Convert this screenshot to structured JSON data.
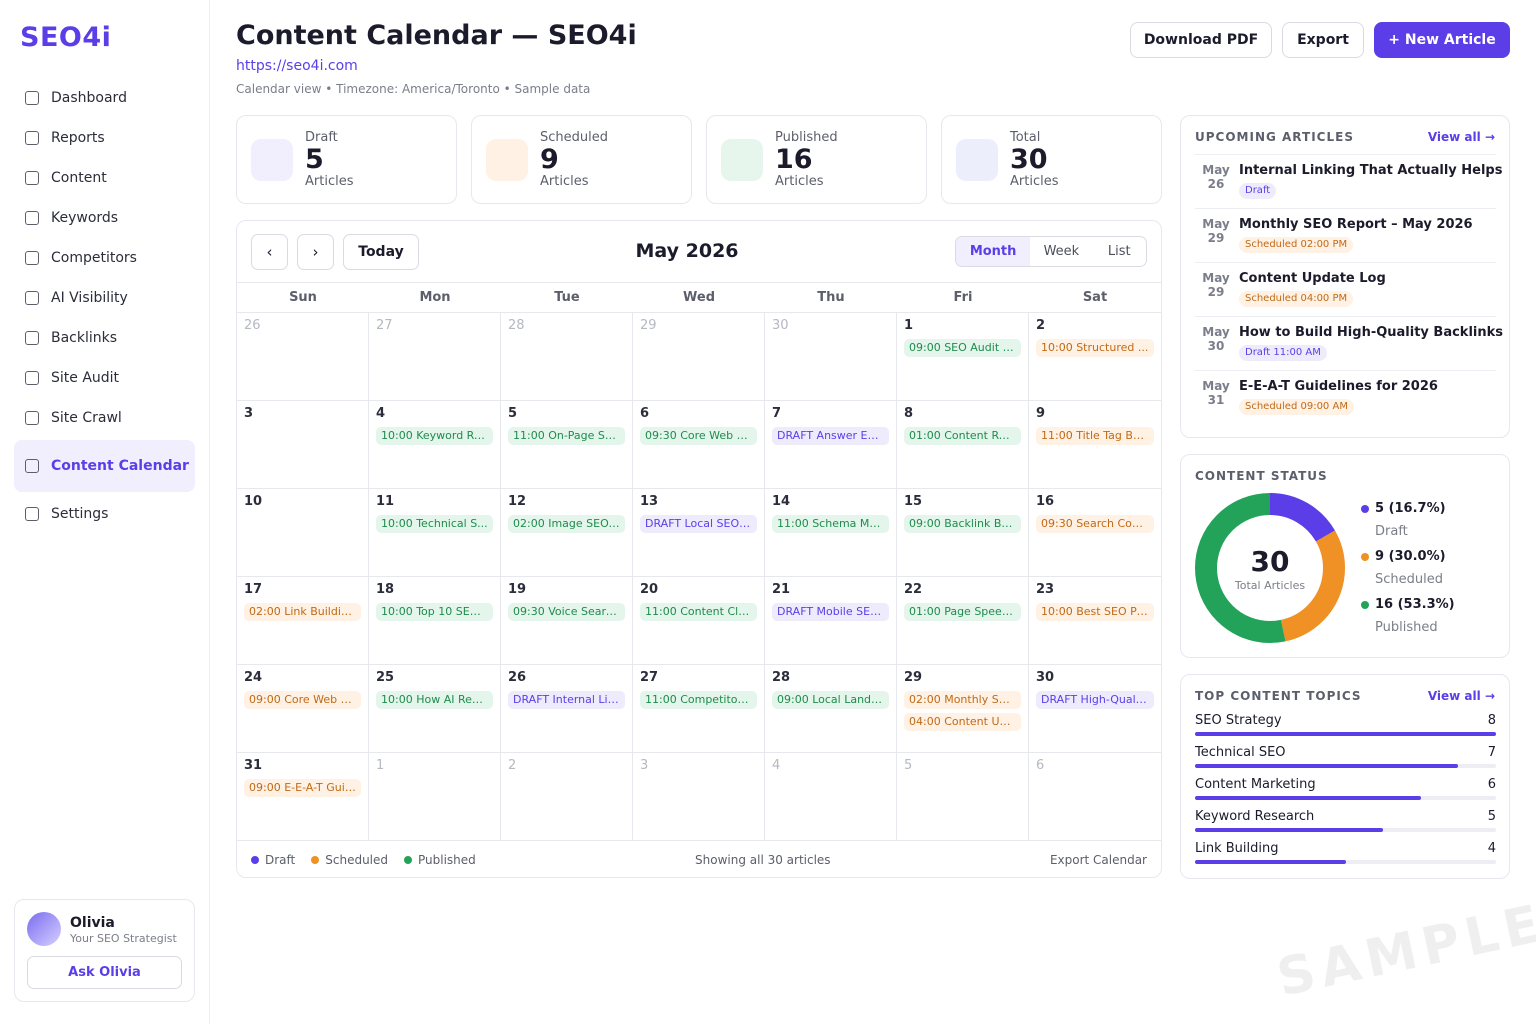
{
  "app": {
    "logo": "SEO4i"
  },
  "sidebar": {
    "items": [
      {
        "label": "Dashboard",
        "active": false
      },
      {
        "label": "Reports",
        "active": false
      },
      {
        "label": "Content",
        "active": false
      },
      {
        "label": "Keywords",
        "active": false
      },
      {
        "label": "Competitors",
        "active": false
      },
      {
        "label": "AI Visibility",
        "active": false
      },
      {
        "label": "Backlinks",
        "active": false
      },
      {
        "label": "Site Audit",
        "active": false
      },
      {
        "label": "Site Crawl",
        "active": false
      },
      {
        "label": "Content Calendar",
        "active": true
      },
      {
        "label": "Settings",
        "active": false
      }
    ],
    "user": {
      "name": "Olivia",
      "role": "Your SEO Strategist",
      "button": "Ask Olivia"
    }
  },
  "header": {
    "title": "Content Calendar — SEO4i",
    "url": "https://seo4i.com",
    "meta": "Calendar view  •  Timezone: America/Toronto  •  Sample data",
    "buttons": {
      "pdf": "Download PDF",
      "export": "Export",
      "new": "+ New Article"
    }
  },
  "stats": [
    {
      "label": "Draft",
      "value": "5",
      "sub": "Articles",
      "color": "#f1eefe"
    },
    {
      "label": "Scheduled",
      "value": "9",
      "sub": "Articles",
      "color": "#fff1e3"
    },
    {
      "label": "Published",
      "value": "16",
      "sub": "Articles",
      "color": "#e6f6ec"
    },
    {
      "label": "Total",
      "value": "30",
      "sub": "Articles",
      "color": "#eceefb"
    }
  ],
  "calendar": {
    "month": "May 2026",
    "prev": "‹",
    "next": "›",
    "today": "Today",
    "views": [
      "Month",
      "Week",
      "List"
    ],
    "weekdays": [
      "Sun",
      "Mon",
      "Tue",
      "Wed",
      "Thu",
      "Fri",
      "Sat"
    ],
    "weeks": [
      [
        {
          "d": "26",
          "other": true,
          "events": []
        },
        {
          "d": "27",
          "other": true,
          "events": []
        },
        {
          "d": "28",
          "other": true,
          "events": []
        },
        {
          "d": "29",
          "other": true,
          "events": []
        },
        {
          "d": "30",
          "other": true,
          "events": []
        },
        {
          "d": "1",
          "events": [
            {
              "t": "09:00 SEO Audit C...",
              "s": "published"
            }
          ]
        },
        {
          "d": "2",
          "events": [
            {
              "t": "10:00 Structured ...",
              "s": "scheduled"
            }
          ]
        }
      ],
      [
        {
          "d": "3",
          "events": []
        },
        {
          "d": "4",
          "events": [
            {
              "t": "10:00 Keyword Re...",
              "s": "published"
            }
          ]
        },
        {
          "d": "5",
          "events": [
            {
              "t": "11:00 On-Page SE...",
              "s": "published"
            }
          ]
        },
        {
          "d": "6",
          "events": [
            {
              "t": "09:30 Core Web Vi...",
              "s": "published"
            }
          ]
        },
        {
          "d": "7",
          "events": [
            {
              "t": "DRAFT Answer En...",
              "s": "draft"
            }
          ]
        },
        {
          "d": "8",
          "events": [
            {
              "t": "01:00 Content Ref...",
              "s": "published"
            }
          ]
        },
        {
          "d": "9",
          "events": [
            {
              "t": "11:00 Title Tag Be...",
              "s": "scheduled"
            }
          ]
        }
      ],
      [
        {
          "d": "10",
          "events": []
        },
        {
          "d": "11",
          "events": [
            {
              "t": "10:00 Technical S...",
              "s": "published"
            }
          ]
        },
        {
          "d": "12",
          "events": [
            {
              "t": "02:00 Image SEO: ...",
              "s": "published"
            }
          ]
        },
        {
          "d": "13",
          "events": [
            {
              "t": "DRAFT Local SEO ...",
              "s": "draft"
            }
          ]
        },
        {
          "d": "14",
          "events": [
            {
              "t": "11:00 Schema Ma...",
              "s": "published"
            }
          ]
        },
        {
          "d": "15",
          "events": [
            {
              "t": "09:00 Backlink Bui...",
              "s": "published"
            }
          ]
        },
        {
          "d": "16",
          "events": [
            {
              "t": "09:30 Search Con...",
              "s": "scheduled"
            }
          ]
        }
      ],
      [
        {
          "d": "17",
          "events": [
            {
              "t": "02:00 Link Buildin...",
              "s": "scheduled"
            }
          ]
        },
        {
          "d": "18",
          "events": [
            {
              "t": "10:00 Top 10 SEO ...",
              "s": "published"
            }
          ]
        },
        {
          "d": "19",
          "events": [
            {
              "t": "09:30 Voice Searc...",
              "s": "published"
            }
          ]
        },
        {
          "d": "20",
          "events": [
            {
              "t": "11:00 Content Clu...",
              "s": "published"
            }
          ]
        },
        {
          "d": "21",
          "events": [
            {
              "t": "DRAFT Mobile SEO...",
              "s": "draft"
            }
          ]
        },
        {
          "d": "22",
          "events": [
            {
              "t": "01:00 Page Speed...",
              "s": "published"
            }
          ]
        },
        {
          "d": "23",
          "events": [
            {
              "t": "10:00 Best SEO Pr...",
              "s": "scheduled"
            }
          ]
        }
      ],
      [
        {
          "d": "24",
          "events": [
            {
              "t": "09:00 Core Web Vi...",
              "s": "scheduled"
            }
          ]
        },
        {
          "d": "25",
          "events": [
            {
              "t": "10:00 How AI Rea...",
              "s": "published"
            }
          ]
        },
        {
          "d": "26",
          "events": [
            {
              "t": "DRAFT Internal Lin...",
              "s": "draft"
            }
          ]
        },
        {
          "d": "27",
          "events": [
            {
              "t": "11:00 Competitor ...",
              "s": "published"
            }
          ]
        },
        {
          "d": "28",
          "events": [
            {
              "t": "09:00 Local Landi...",
              "s": "published"
            }
          ]
        },
        {
          "d": "29",
          "events": [
            {
              "t": "02:00 Monthly SE...",
              "s": "scheduled"
            },
            {
              "t": "04:00 Content Up...",
              "s": "scheduled"
            }
          ]
        },
        {
          "d": "30",
          "events": [
            {
              "t": "DRAFT High-Qualit...",
              "s": "draft"
            }
          ]
        }
      ],
      [
        {
          "d": "31",
          "events": [
            {
              "t": "09:00 E-E-A-T Guid...",
              "s": "scheduled"
            }
          ]
        },
        {
          "d": "1",
          "other": true,
          "events": []
        },
        {
          "d": "2",
          "other": true,
          "events": []
        },
        {
          "d": "3",
          "other": true,
          "events": []
        },
        {
          "d": "4",
          "other": true,
          "events": []
        },
        {
          "d": "5",
          "other": true,
          "events": []
        },
        {
          "d": "6",
          "other": true,
          "events": []
        }
      ]
    ],
    "legend": [
      {
        "label": "Draft",
        "color": "#5b3ee8"
      },
      {
        "label": "Scheduled",
        "color": "#ef9124"
      },
      {
        "label": "Published",
        "color": "#23a35a"
      }
    ],
    "showing": "Showing all 30 articles",
    "export": "Export Calendar"
  },
  "upcoming": {
    "title": "UPCOMING ARTICLES",
    "link": "View all →",
    "items": [
      {
        "month": "May",
        "day": "26",
        "title": "Internal Linking That Actually Helps",
        "badge": "Draft",
        "status": "draft"
      },
      {
        "month": "May",
        "day": "29",
        "title": "Monthly SEO Report – May 2026",
        "badge": "Scheduled 02:00 PM",
        "status": "scheduled"
      },
      {
        "month": "May",
        "day": "29",
        "title": "Content Update Log",
        "badge": "Scheduled 04:00 PM",
        "status": "scheduled"
      },
      {
        "month": "May",
        "day": "30",
        "title": "How to Build High-Quality Backlinks",
        "badge": "Draft 11:00 AM",
        "status": "draft"
      },
      {
        "month": "May",
        "day": "31",
        "title": "E-E-A-T Guidelines for 2026",
        "badge": "Scheduled 09:00 AM",
        "status": "scheduled"
      }
    ]
  },
  "status": {
    "title": "CONTENT STATUS",
    "total": "30",
    "total_label": "Total Articles",
    "segments": [
      {
        "value": "5 (16.7%)",
        "name": "Draft",
        "count": 5,
        "color": "#5b3ee8"
      },
      {
        "value": "9 (30.0%)",
        "name": "Scheduled",
        "count": 9,
        "color": "#ef9124"
      },
      {
        "value": "16 (53.3%)",
        "name": "Published",
        "count": 16,
        "color": "#23a35a"
      }
    ]
  },
  "topics": {
    "title": "TOP CONTENT TOPICS",
    "link": "View all →",
    "items": [
      {
        "name": "SEO Strategy",
        "count": "8",
        "value": 8
      },
      {
        "name": "Technical SEO",
        "count": "7",
        "value": 7
      },
      {
        "name": "Content Marketing",
        "count": "6",
        "value": 6
      },
      {
        "name": "Keyword Research",
        "count": "5",
        "value": 5
      },
      {
        "name": "Link Building",
        "count": "4",
        "value": 4
      }
    ],
    "max": 8
  },
  "watermark": "SAMPLE"
}
